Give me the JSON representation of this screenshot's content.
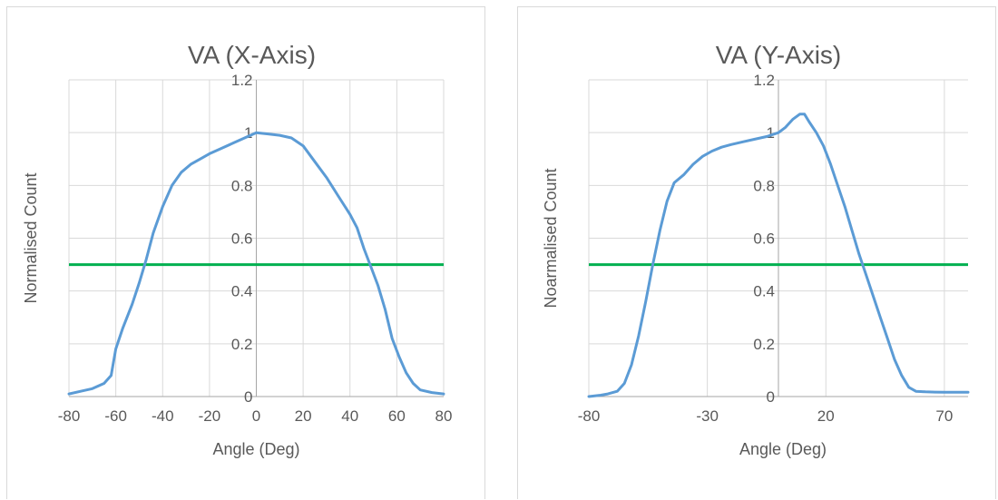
{
  "chart_data": [
    {
      "type": "line",
      "title": "VA (X-Axis)",
      "xlabel": "Angle (Deg)",
      "ylabel": "Normalised Count",
      "xlim": [
        -80,
        80
      ],
      "ylim": [
        0,
        1.2
      ],
      "xticks": [
        -80,
        -60,
        -40,
        -20,
        0,
        20,
        40,
        60,
        80
      ],
      "xtick_labels": [
        "-80",
        "-60",
        "-40",
        "-20",
        "0",
        "20",
        "40",
        "60",
        "80"
      ],
      "yticks": [
        0,
        0.2,
        0.4,
        0.6,
        0.8,
        1,
        1.2
      ],
      "ytick_labels": [
        "0",
        "0.2",
        "0.4",
        "0.6",
        "0.8",
        "1",
        "1.2"
      ],
      "grid": true,
      "threshold": 0.5,
      "series_color": "#5b9bd5",
      "threshold_color": "#00b050",
      "series": [
        {
          "values": [
            [
              -80,
              0.01
            ],
            [
              -75,
              0.02
            ],
            [
              -70,
              0.03
            ],
            [
              -65,
              0.05
            ],
            [
              -62,
              0.08
            ],
            [
              -60,
              0.18
            ],
            [
              -57,
              0.26
            ],
            [
              -53,
              0.35
            ],
            [
              -50,
              0.43
            ],
            [
              -47,
              0.52
            ],
            [
              -44,
              0.62
            ],
            [
              -40,
              0.72
            ],
            [
              -36,
              0.8
            ],
            [
              -32,
              0.85
            ],
            [
              -28,
              0.88
            ],
            [
              -24,
              0.9
            ],
            [
              -20,
              0.92
            ],
            [
              -15,
              0.94
            ],
            [
              -10,
              0.96
            ],
            [
              -5,
              0.98
            ],
            [
              0,
              1.0
            ],
            [
              5,
              0.995
            ],
            [
              10,
              0.99
            ],
            [
              15,
              0.98
            ],
            [
              20,
              0.95
            ],
            [
              25,
              0.89
            ],
            [
              30,
              0.83
            ],
            [
              35,
              0.76
            ],
            [
              40,
              0.69
            ],
            [
              43,
              0.64
            ],
            [
              46,
              0.56
            ],
            [
              49,
              0.49
            ],
            [
              52,
              0.42
            ],
            [
              55,
              0.33
            ],
            [
              58,
              0.22
            ],
            [
              61,
              0.15
            ],
            [
              64,
              0.09
            ],
            [
              67,
              0.05
            ],
            [
              70,
              0.025
            ],
            [
              75,
              0.015
            ],
            [
              80,
              0.01
            ]
          ]
        }
      ]
    },
    {
      "type": "line",
      "title": "VA (Y-Axis)",
      "xlabel": "Angle (Deg)",
      "ylabel": "Noarmalised Count",
      "xlim": [
        -80,
        80
      ],
      "ylim": [
        0,
        1.2
      ],
      "xticks": [
        -80,
        -30,
        20,
        70
      ],
      "xtick_labels": [
        "-80",
        "-30",
        "20",
        "70"
      ],
      "yticks": [
        0,
        0.2,
        0.4,
        0.6,
        0.8,
        1,
        1.2
      ],
      "ytick_labels": [
        "0",
        "0.2",
        "0.4",
        "0.6",
        "0.8",
        "1",
        "1.2"
      ],
      "grid": true,
      "threshold": 0.5,
      "series_color": "#5b9bd5",
      "threshold_color": "#00b050",
      "series": [
        {
          "values": [
            [
              -80,
              0.0
            ],
            [
              -75,
              0.005
            ],
            [
              -72,
              0.01
            ],
            [
              -68,
              0.02
            ],
            [
              -65,
              0.05
            ],
            [
              -62,
              0.12
            ],
            [
              -59,
              0.23
            ],
            [
              -56,
              0.36
            ],
            [
              -53,
              0.5
            ],
            [
              -50,
              0.63
            ],
            [
              -47,
              0.74
            ],
            [
              -44,
              0.81
            ],
            [
              -40,
              0.84
            ],
            [
              -36,
              0.88
            ],
            [
              -32,
              0.91
            ],
            [
              -28,
              0.93
            ],
            [
              -24,
              0.945
            ],
            [
              -20,
              0.955
            ],
            [
              -15,
              0.965
            ],
            [
              -10,
              0.975
            ],
            [
              -5,
              0.985
            ],
            [
              0,
              1.0
            ],
            [
              3,
              1.02
            ],
            [
              6,
              1.05
            ],
            [
              9,
              1.07
            ],
            [
              11,
              1.07
            ],
            [
              13,
              1.04
            ],
            [
              16,
              1.0
            ],
            [
              19,
              0.95
            ],
            [
              22,
              0.88
            ],
            [
              25,
              0.8
            ],
            [
              28,
              0.72
            ],
            [
              31,
              0.63
            ],
            [
              34,
              0.54
            ],
            [
              37,
              0.46
            ],
            [
              40,
              0.38
            ],
            [
              43,
              0.3
            ],
            [
              46,
              0.22
            ],
            [
              49,
              0.14
            ],
            [
              52,
              0.08
            ],
            [
              55,
              0.035
            ],
            [
              58,
              0.02
            ],
            [
              62,
              0.018
            ],
            [
              66,
              0.017
            ],
            [
              70,
              0.016
            ],
            [
              75,
              0.016
            ],
            [
              80,
              0.016
            ]
          ]
        }
      ]
    }
  ]
}
